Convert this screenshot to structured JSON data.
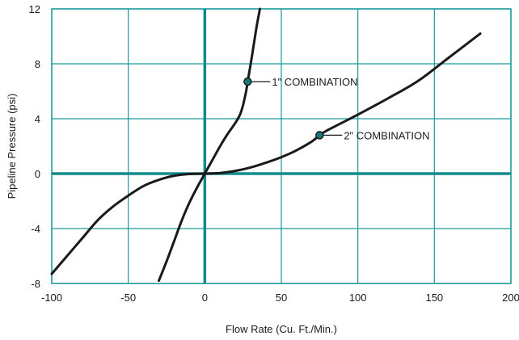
{
  "chart_data": {
    "type": "line",
    "title": "",
    "xlabel": "Flow Rate (Cu. Ft./Min.)",
    "ylabel": "Pipeline Pressure (psi)",
    "xlim": [
      -100,
      200
    ],
    "ylim": [
      -8,
      12
    ],
    "x_ticks": [
      -100,
      -50,
      0,
      50,
      100,
      150,
      200
    ],
    "y_ticks": [
      -8,
      -4,
      0,
      4,
      8,
      12
    ],
    "x_tick_labels": [
      "-100",
      "-50",
      "0",
      "50",
      "100",
      "150",
      "200"
    ],
    "y_tick_labels": [
      "-8",
      "-4",
      "0",
      "4",
      "8",
      "12"
    ],
    "grid": true,
    "colors": {
      "grid": "#1b9a9a",
      "axis_zero": "#118a8a",
      "curve": "#1a1a1a",
      "marker": "#117a7a"
    },
    "series": [
      {
        "points": [
          [
            -30,
            -7.8
          ],
          [
            -25,
            -6.4
          ],
          [
            -20,
            -4.9
          ],
          [
            -15,
            -3.4
          ],
          [
            -10,
            -2.1
          ],
          [
            -5,
            -1.0
          ],
          [
            0,
            0
          ],
          [
            5,
            1.0
          ],
          [
            10,
            2.0
          ],
          [
            15,
            2.9
          ],
          [
            20,
            3.7
          ],
          [
            23,
            4.3
          ],
          [
            25,
            5.0
          ],
          [
            27,
            6.0
          ],
          [
            28,
            6.7
          ],
          [
            30,
            8.0
          ],
          [
            32,
            9.4
          ],
          [
            34,
            10.8
          ],
          [
            36,
            12.0
          ]
        ]
      },
      {
        "points": [
          [
            -100,
            -7.3
          ],
          [
            -90,
            -6.0
          ],
          [
            -80,
            -4.7
          ],
          [
            -70,
            -3.4
          ],
          [
            -60,
            -2.4
          ],
          [
            -50,
            -1.6
          ],
          [
            -40,
            -0.9
          ],
          [
            -30,
            -0.45
          ],
          [
            -20,
            -0.15
          ],
          [
            -10,
            -0.03
          ],
          [
            0,
            0
          ],
          [
            10,
            0.05
          ],
          [
            20,
            0.2
          ],
          [
            30,
            0.45
          ],
          [
            40,
            0.8
          ],
          [
            50,
            1.2
          ],
          [
            60,
            1.7
          ],
          [
            70,
            2.35
          ],
          [
            75,
            2.8
          ],
          [
            80,
            3.15
          ],
          [
            100,
            4.3
          ],
          [
            120,
            5.5
          ],
          [
            140,
            6.8
          ],
          [
            160,
            8.5
          ],
          [
            180,
            10.2
          ]
        ]
      }
    ],
    "annotations": [
      {
        "label": "1\" COMBINATION",
        "x": 28,
        "y": 6.7
      },
      {
        "label": "2\" COMBINATION",
        "x": 75,
        "y": 2.8
      }
    ]
  }
}
